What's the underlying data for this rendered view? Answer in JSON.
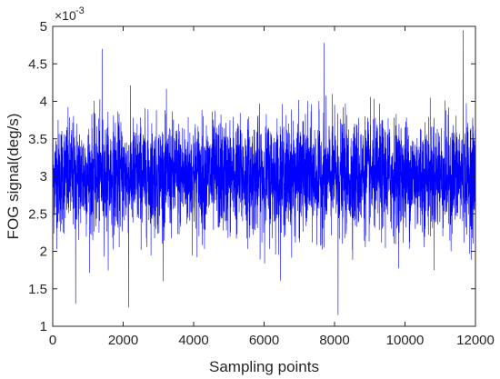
{
  "chart_data": {
    "type": "line",
    "title": "",
    "xlabel": "Sampling points",
    "ylabel": "FOG signal(deg/s)",
    "y_scale_multiplier": "×10",
    "y_scale_exponent": "-3",
    "xlim": [
      0,
      12000
    ],
    "ylim": [
      1,
      5
    ],
    "x_ticks": [
      0,
      2000,
      4000,
      6000,
      8000,
      10000,
      12000
    ],
    "x_tick_labels": [
      "0",
      "2000",
      "4000",
      "6000",
      "8000",
      "10000",
      "12000"
    ],
    "y_ticks": [
      1,
      1.5,
      2,
      2.5,
      3,
      3.5,
      4,
      4.5,
      5
    ],
    "y_tick_labels": [
      "1",
      "1.5",
      "2",
      "2.5",
      "3",
      "3.5",
      "4",
      "4.5",
      "5"
    ],
    "grid": false,
    "legend": "none",
    "series_color": "#0000ff",
    "series_style": "dense noise around a mean, one value per sampling point",
    "n_points": 12000,
    "mean": 3.0,
    "band": [
      2.5,
      3.5
    ],
    "notable_peaks": [
      {
        "x": 1400,
        "y": 4.7
      },
      {
        "x": 7700,
        "y": 4.78
      },
      {
        "x": 11650,
        "y": 4.95
      }
    ],
    "notable_troughs": [
      {
        "x": 650,
        "y": 1.3
      },
      {
        "x": 2150,
        "y": 1.25
      },
      {
        "x": 8100,
        "y": 1.15
      }
    ]
  }
}
